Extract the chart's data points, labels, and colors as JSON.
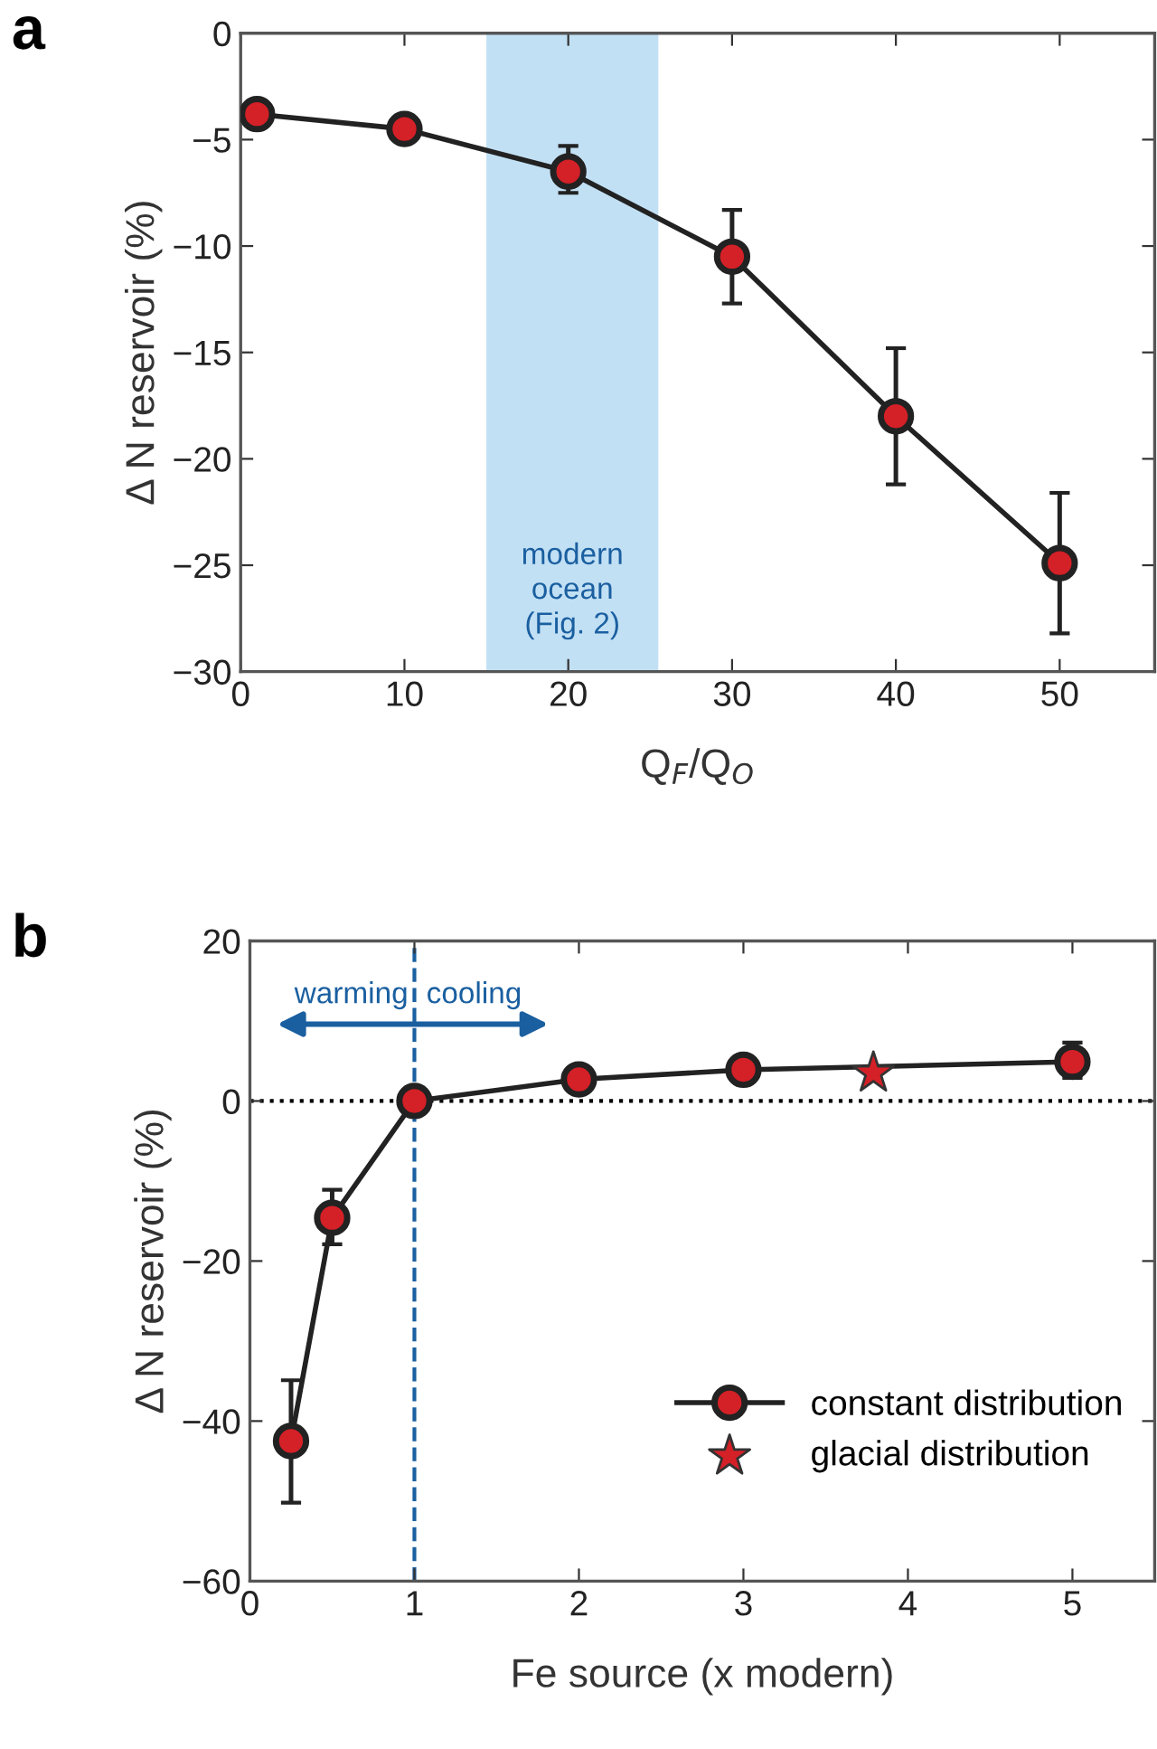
{
  "chart_data": [
    {
      "type": "line",
      "title": "a",
      "xlabel": "Q$_{F}$/Q$_{O}$",
      "ylabel": "Δ N reservoir (%)",
      "xlim": [
        0,
        55.8
      ],
      "ylim": [
        -30,
        0
      ],
      "xticks": [
        0,
        10,
        20,
        30,
        40,
        50
      ],
      "yticks": [
        0,
        -5,
        -10,
        -15,
        -20,
        -25,
        -30
      ],
      "grid": false,
      "legend": false,
      "marker": "circle",
      "line_style": "solid",
      "series": [
        {
          "x": [
            1,
            10,
            20,
            30,
            40,
            50
          ],
          "values": [
            -3.8,
            -4.5,
            -6.5,
            -10.5,
            -18,
            -24.9
          ],
          "color": "#d42027",
          "errors": [
            null,
            null,
            [
              -7.5,
              -5.3
            ],
            [
              -12.7,
              -8.3
            ],
            [
              -21.2,
              -14.8
            ],
            [
              -28.2,
              -21.6
            ]
          ]
        }
      ],
      "bands": [
        {
          "axis": "x",
          "from": 15,
          "to": 25.5,
          "label": "modern\nocean\n(Fig. 2)",
          "color": "#c2e0f4"
        }
      ]
    },
    {
      "type": "line",
      "title": "b",
      "xlabel": "Fe source (x modern)",
      "ylabel": "Δ N reservoir (%)",
      "xlim": [
        0,
        5.5
      ],
      "ylim": [
        -60,
        20
      ],
      "xticks": [
        0,
        1,
        2,
        3,
        4,
        5
      ],
      "yticks": [
        20,
        0,
        -20,
        -40,
        -60
      ],
      "grid": false,
      "legend": "bottom right",
      "line_style": "solid",
      "series": [
        {
          "name": "constant distribution",
          "marker": "circle",
          "x": [
            0.25,
            0.5,
            1,
            2,
            3,
            5
          ],
          "values": [
            -42.5,
            -14.6,
            0,
            2.7,
            3.9,
            4.9
          ],
          "color": "#d42027",
          "errors": [
            [
              -50.2,
              -34.9
            ],
            [
              -17.9,
              -11.1
            ],
            null,
            null,
            null,
            [
              2.9,
              7.3
            ]
          ]
        },
        {
          "name": "glacial distribution",
          "type": "scatter",
          "marker": "star",
          "x": [
            3.79
          ],
          "values": [
            3.5
          ],
          "color": "#d42027"
        }
      ],
      "ref_lines": [
        {
          "axis": "y",
          "value": 0,
          "color": "#000000",
          "line_style": "dotted"
        },
        {
          "axis": "x",
          "value": 1,
          "color": "#1a5fa0",
          "line_style": "dashed"
        }
      ],
      "annotations": [
        "warming",
        "cooling"
      ]
    }
  ]
}
